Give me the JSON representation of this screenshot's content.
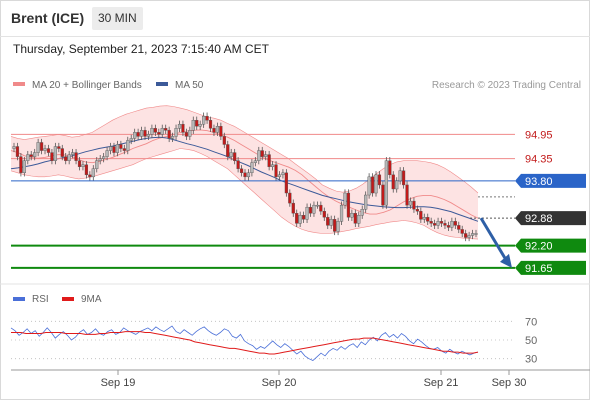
{
  "header": {
    "instrument": "Brent (ICE)",
    "timeframe": "30 MIN"
  },
  "datetime": "Thursday, September 21, 2023 7:15:40 AM CET",
  "legend": {
    "bb_label": "MA 20 + Bollinger Bands",
    "ma50_label": "MA 50",
    "credit": "Research © 2023 Trading Central"
  },
  "rsi_legend": {
    "rsi_label": "RSI",
    "ma_label": "9MA"
  },
  "colors": {
    "bb": "#f08a8a",
    "bb_fill": "#fde3e3",
    "ma50": "#3c5a99",
    "support": "#0f8a0f",
    "pivot": "#2a64c8",
    "current": "#333333",
    "arrow": "#2e5fa6",
    "rsi": "#4a6fd8",
    "rsi_ma": "#e01b1b",
    "candle_up": "#b8b8b8",
    "candle_down": "#c21a1a"
  },
  "chart_data": [
    {
      "type": "candlestick",
      "title": "Brent (ICE)",
      "timeframe": "30 MIN",
      "ylim": [
        91.3,
        95.8
      ],
      "x_ticks": [
        "Sep 19",
        "Sep 20",
        "Sep 21",
        "Sep 30"
      ],
      "levels": [
        {
          "label": "94.95",
          "value": 94.95,
          "kind": "resistance"
        },
        {
          "label": "94.35",
          "value": 94.35,
          "kind": "resistance"
        },
        {
          "label": "93.80",
          "value": 93.8,
          "kind": "pivot"
        },
        {
          "label": "92.88",
          "value": 92.88,
          "kind": "current"
        },
        {
          "label": "92.20",
          "value": 92.2,
          "kind": "support"
        },
        {
          "label": "91.65",
          "value": 91.65,
          "kind": "support"
        }
      ],
      "forecast": {
        "from": 92.88,
        "to": 91.65
      },
      "close": [
        94.65,
        94.4,
        94.0,
        94.3,
        94.45,
        94.4,
        94.5,
        94.75,
        94.55,
        94.6,
        94.5,
        94.3,
        94.65,
        94.6,
        94.4,
        94.3,
        94.45,
        94.5,
        94.3,
        94.15,
        94.2,
        93.95,
        93.9,
        94.1,
        94.3,
        94.35,
        94.4,
        94.55,
        94.65,
        94.5,
        94.7,
        94.6,
        94.55,
        94.8,
        94.85,
        95.0,
        94.9,
        95.05,
        94.9,
        94.95,
        95.1,
        95.0,
        94.95,
        95.1,
        95.05,
        94.85,
        94.9,
        95.1,
        95.2,
        95.0,
        94.9,
        95.05,
        95.3,
        95.15,
        95.2,
        95.4,
        95.3,
        95.1,
        95.0,
        95.15,
        94.9,
        94.7,
        94.4,
        94.5,
        94.3,
        94.1,
        94.0,
        93.9,
        94.0,
        94.25,
        94.3,
        94.55,
        94.4,
        94.45,
        94.15,
        94.2,
        93.9,
        93.95,
        94.0,
        93.5,
        93.25,
        93.0,
        92.75,
        92.95,
        92.85,
        93.15,
        93.0,
        93.2,
        93.2,
        93.05,
        92.9,
        92.7,
        92.85,
        92.55,
        92.8,
        93.2,
        93.5,
        92.9,
        93.0,
        92.75,
        92.95,
        93.1,
        93.45,
        93.9,
        93.5,
        93.95,
        93.7,
        93.2,
        94.3,
        93.95,
        93.6,
        93.8,
        94.05,
        93.7,
        93.2,
        93.3,
        93.1,
        93.05,
        92.85,
        92.9,
        92.8,
        92.75,
        92.7,
        92.8,
        92.75,
        92.7,
        92.65,
        92.8,
        92.7,
        92.6,
        92.5,
        92.4,
        92.45,
        92.5,
        92.5
      ],
      "ma20": [
        94.55,
        94.5,
        94.42,
        94.38,
        94.36,
        94.38,
        94.42,
        94.45,
        94.44,
        94.4,
        94.33,
        94.27,
        94.25,
        94.28,
        94.33,
        94.38,
        94.45,
        94.52,
        94.6,
        94.66,
        94.72,
        94.8,
        94.86,
        94.9,
        94.95,
        95.0,
        95.03,
        95.05,
        95.06,
        95.04,
        95.0,
        94.94,
        94.88,
        94.8,
        94.7,
        94.6,
        94.5,
        94.4,
        94.32,
        94.26,
        94.2,
        94.14,
        94.06,
        93.95,
        93.8,
        93.66,
        93.52,
        93.4,
        93.3,
        93.22,
        93.15,
        93.08,
        93.02,
        92.98,
        92.98,
        93.02,
        93.08,
        93.18,
        93.28,
        93.36,
        93.42,
        93.44,
        93.44,
        93.4,
        93.34,
        93.26,
        93.16,
        93.06,
        92.96,
        92.88
      ],
      "ma50": [
        94.1,
        94.12,
        94.15,
        94.18,
        94.22,
        94.27,
        94.31,
        94.35,
        94.38,
        94.42,
        94.47,
        94.52,
        94.56,
        94.6,
        94.63,
        94.66,
        94.7,
        94.74,
        94.78,
        94.82,
        94.85,
        94.87,
        94.88,
        94.86,
        94.82,
        94.77,
        94.72,
        94.68,
        94.63,
        94.58,
        94.52,
        94.46,
        94.4,
        94.32,
        94.25,
        94.18,
        94.1,
        94.02,
        93.95,
        93.88,
        93.8,
        93.74,
        93.68,
        93.62,
        93.56,
        93.5,
        93.44,
        93.4,
        93.36,
        93.32,
        93.28,
        93.25,
        93.22,
        93.2,
        93.18,
        93.16,
        93.15,
        93.14,
        93.14,
        93.15,
        93.16,
        93.16,
        93.15,
        93.12,
        93.08,
        93.04,
        92.98,
        92.92,
        92.86,
        92.8
      ],
      "bb_upper": [
        94.9,
        94.85,
        94.82,
        94.85,
        94.88,
        94.9,
        94.92,
        94.95,
        94.92,
        94.88,
        94.9,
        94.95,
        95.0,
        95.1,
        95.2,
        95.3,
        95.38,
        95.45,
        95.5,
        95.55,
        95.6,
        95.62,
        95.65,
        95.66,
        95.64,
        95.6,
        95.56,
        95.5,
        95.44,
        95.38,
        95.35,
        95.3,
        95.22,
        95.15,
        95.05,
        94.95,
        94.85,
        94.75,
        94.65,
        94.55,
        94.45,
        94.35,
        94.22,
        94.1,
        93.98,
        93.85,
        93.7,
        93.62,
        93.55,
        93.52,
        93.55,
        93.62,
        93.72,
        93.85,
        93.98,
        94.1,
        94.2,
        94.27,
        94.3,
        94.3,
        94.3,
        94.28,
        94.25,
        94.2,
        94.12,
        94.02,
        93.9,
        93.78,
        93.65,
        93.5
      ],
      "bb_lower": [
        94.05,
        94.0,
        93.95,
        93.92,
        93.9,
        93.9,
        93.92,
        93.95,
        93.92,
        93.88,
        93.85,
        93.87,
        93.9,
        93.95,
        94.0,
        94.05,
        94.1,
        94.15,
        94.2,
        94.28,
        94.35,
        94.4,
        94.45,
        94.5,
        94.55,
        94.6,
        94.58,
        94.55,
        94.48,
        94.4,
        94.3,
        94.2,
        94.1,
        93.95,
        93.8,
        93.65,
        93.5,
        93.35,
        93.2,
        93.05,
        92.9,
        92.78,
        92.68,
        92.6,
        92.55,
        92.52,
        92.5,
        92.5,
        92.52,
        92.55,
        92.58,
        92.62,
        92.65,
        92.68,
        92.72,
        92.75,
        92.78,
        92.8,
        92.82,
        92.8,
        92.76,
        92.7,
        92.6,
        92.52,
        92.46,
        92.42,
        92.4,
        92.38,
        92.37,
        92.36
      ]
    },
    {
      "type": "line",
      "title": "RSI",
      "ylim": [
        20,
        80
      ],
      "y_ticks": [
        70,
        50,
        30
      ],
      "series": [
        {
          "name": "RSI",
          "values": [
            63,
            60,
            55,
            58,
            62,
            57,
            60,
            54,
            58,
            63,
            58,
            52,
            56,
            59,
            55,
            50,
            53,
            58,
            61,
            56,
            58,
            62,
            57,
            55,
            59,
            61,
            56,
            58,
            63,
            60,
            58,
            56,
            59,
            61,
            63,
            60,
            64,
            61,
            59,
            62,
            65,
            59,
            57,
            61,
            58,
            55,
            59,
            62,
            64,
            60,
            57,
            55,
            58,
            62,
            60,
            54,
            52,
            56,
            49,
            46,
            44,
            40,
            43,
            41,
            45,
            49,
            45,
            42,
            46,
            43,
            39,
            35,
            38,
            33,
            30,
            28,
            32,
            36,
            33,
            38,
            41,
            39,
            43,
            40,
            44,
            46,
            42,
            48,
            45,
            50,
            53,
            49,
            55,
            58,
            53,
            56,
            52,
            57,
            54,
            49,
            46,
            51,
            48,
            44,
            41,
            40,
            42,
            38,
            36,
            40,
            37,
            35,
            38,
            36,
            34,
            36,
            37
          ]
        },
        {
          "name": "9MA",
          "values": [
            58,
            58,
            58,
            57,
            57,
            57,
            57,
            58,
            58,
            58,
            58,
            57,
            57,
            57,
            57,
            56,
            56,
            56,
            57,
            57,
            58,
            58,
            58,
            59,
            59,
            59,
            59,
            58,
            58,
            57,
            56,
            55,
            54,
            53,
            52,
            51,
            50,
            48,
            47,
            46,
            45,
            44,
            43,
            42,
            41,
            41,
            40,
            39,
            38,
            37,
            36,
            36,
            35,
            35,
            36,
            37,
            38,
            39,
            40,
            41,
            42,
            43,
            44,
            45,
            46,
            47,
            48,
            49,
            50,
            51,
            51,
            52,
            52,
            52,
            51,
            50,
            49,
            48,
            47,
            46,
            45,
            44,
            43,
            42,
            41,
            40,
            39,
            38,
            38,
            37,
            37,
            36,
            36,
            36,
            37
          ]
        }
      ]
    }
  ]
}
